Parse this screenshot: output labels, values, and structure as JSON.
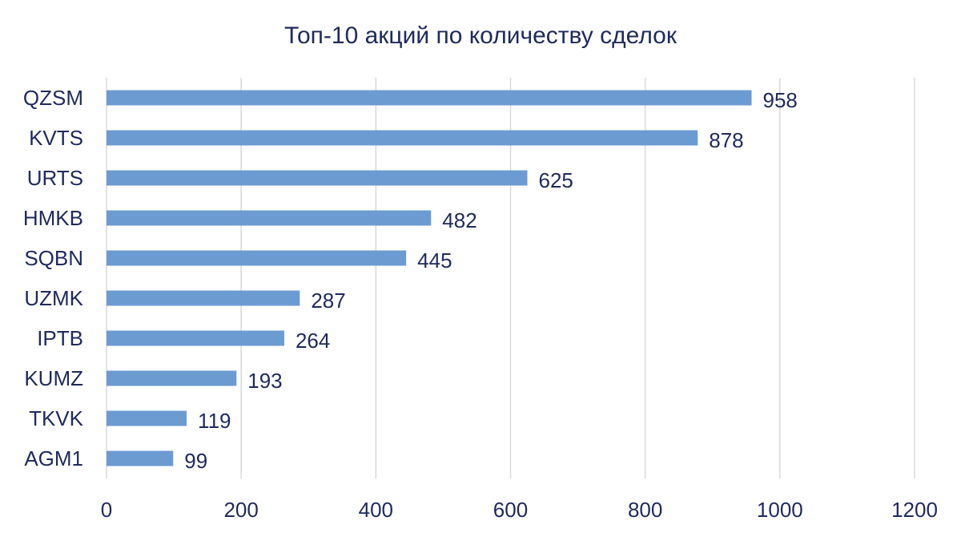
{
  "chart_data": {
    "type": "bar",
    "orientation": "horizontal",
    "title": "Топ-10 акций по количеству сделок",
    "xlabel": "",
    "ylabel": "",
    "categories": [
      "QZSM",
      "KVTS",
      "URTS",
      "HMKB",
      "SQBN",
      "UZMK",
      "IPTB",
      "KUMZ",
      "TKVK",
      "AGM1"
    ],
    "values": [
      958,
      878,
      625,
      482,
      445,
      287,
      264,
      193,
      119,
      99
    ],
    "xlim": [
      0,
      1200
    ],
    "ticks": [
      0,
      200,
      400,
      600,
      800,
      1000,
      1200
    ],
    "tick_labels": [
      "0",
      "200",
      "400",
      "600",
      "800",
      "1000",
      "1200"
    ],
    "grid": true,
    "legend": "none",
    "data_labels": true
  },
  "colors": {
    "bar": "#6C9BD2",
    "text": "#1F2A5C",
    "grid": "#D9D9D9"
  }
}
